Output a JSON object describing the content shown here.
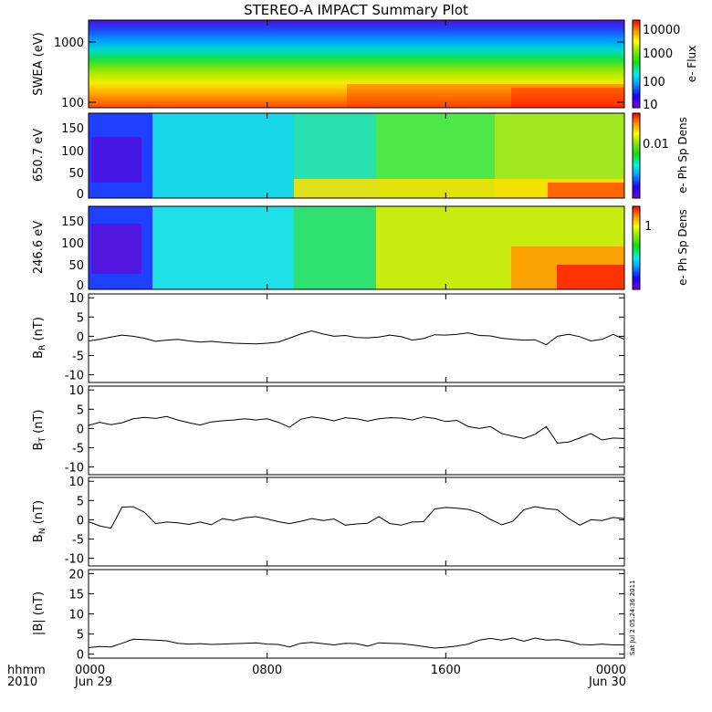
{
  "title": "STEREO-A IMPACT Summary Plot",
  "timestamp_label": "Sat Jul  2 05:24:36 2011",
  "chart_data": [
    {
      "type": "heatmap",
      "id": "swea",
      "ylabel": "SWEA (eV)",
      "y_scale": "log",
      "ylim": [
        100,
        2000
      ],
      "y_ticks": [
        "100",
        "1000"
      ],
      "y_tick_values": [
        100,
        1000
      ],
      "colorbar": {
        "label": "e- Flux",
        "scale": "log",
        "ticks": [
          "10",
          "100",
          "1000",
          "10000"
        ],
        "tick_values": [
          10,
          100,
          1000,
          10000
        ],
        "range": [
          6,
          15000
        ]
      }
    },
    {
      "type": "heatmap",
      "id": "pad650",
      "ylabel": "650.7 eV",
      "ylim": [
        0,
        180
      ],
      "y_ticks": [
        "0",
        "50",
        "100",
        "150"
      ],
      "y_tick_values": [
        0,
        50,
        100,
        150
      ],
      "colorbar": {
        "label": "e- Ph Sp Dens",
        "scale": "log",
        "ticks": [
          "0.01"
        ],
        "tick_values": [
          0.01
        ],
        "range": [
          0.0005,
          0.08
        ]
      }
    },
    {
      "type": "heatmap",
      "id": "pad246",
      "ylabel": "246.6 eV",
      "ylim": [
        0,
        180
      ],
      "y_ticks": [
        "0",
        "50",
        "100",
        "150"
      ],
      "y_tick_values": [
        0,
        50,
        100,
        150
      ],
      "colorbar": {
        "label": "e- Ph Sp Dens",
        "scale": "log",
        "ticks": [
          "1"
        ],
        "tick_values": [
          1
        ],
        "range": [
          0.05,
          4
        ]
      }
    },
    {
      "type": "line",
      "id": "br",
      "ylabel": "BR (nT)",
      "ylim": [
        -12,
        11
      ],
      "y_ticks": [
        "-10",
        "-5",
        "0",
        "5",
        "10"
      ],
      "y_tick_values": [
        -10,
        -5,
        0,
        5,
        10
      ],
      "x": [
        0,
        0.5,
        1,
        1.5,
        2,
        2.5,
        3,
        3.5,
        4,
        4.5,
        5,
        5.5,
        6,
        6.5,
        7,
        7.5,
        8,
        8.5,
        9,
        9.5,
        10,
        10.5,
        11,
        11.5,
        12,
        12.5,
        13,
        13.5,
        14,
        14.5,
        15,
        15.5,
        16,
        16.5,
        17,
        17.5,
        18,
        18.5,
        19,
        19.5,
        20,
        20.5,
        21,
        21.5,
        22,
        22.5,
        23,
        23.5,
        24
      ],
      "y": [
        -1.2,
        -0.8,
        -0.2,
        0.3,
        0,
        -0.5,
        -1.3,
        -1,
        -0.8,
        -1.2,
        -1.5,
        -1.3,
        -1.6,
        -1.8,
        -1.9,
        -2,
        -1.8,
        -1.5,
        -0.5,
        0.6,
        1.4,
        0.6,
        0,
        0.2,
        -0.3,
        -0.4,
        -0.2,
        0.3,
        -0.1,
        -1,
        -0.6,
        0.4,
        0.3,
        0.5,
        0.9,
        0.2,
        0.1,
        -0.5,
        -0.8,
        -1,
        -0.9,
        -2.2,
        0,
        0.5,
        -0.1,
        -1.2,
        -0.8,
        0.5,
        -0.8
      ]
    },
    {
      "type": "line",
      "id": "bt",
      "ylabel": "BT (nT)",
      "ylim": [
        -12,
        11
      ],
      "y_ticks": [
        "-10",
        "-5",
        "0",
        "5",
        "10"
      ],
      "y_tick_values": [
        -10,
        -5,
        0,
        5,
        10
      ],
      "x": [
        0,
        0.5,
        1,
        1.5,
        2,
        2.5,
        3,
        3.5,
        4,
        4.5,
        5,
        5.5,
        6,
        6.5,
        7,
        7.5,
        8,
        8.5,
        9,
        9.5,
        10,
        10.5,
        11,
        11.5,
        12,
        12.5,
        13,
        13.5,
        14,
        14.5,
        15,
        15.5,
        16,
        16.5,
        17,
        17.5,
        18,
        18.5,
        19,
        19.5,
        20,
        20.5,
        21,
        21.5,
        22,
        22.5,
        23,
        23.5,
        24
      ],
      "y": [
        0.8,
        1.6,
        1,
        1.5,
        2.5,
        2.9,
        2.6,
        3.1,
        2.2,
        1.5,
        0.9,
        1.7,
        2,
        2.2,
        2.5,
        2.2,
        2.5,
        1.6,
        0.3,
        2.4,
        3,
        2.6,
        2,
        2.8,
        2.5,
        1.9,
        2.5,
        2.8,
        2.7,
        2.2,
        3,
        2.6,
        1.8,
        2.1,
        0.5,
        0,
        0.5,
        -1.3,
        -2,
        -2.6,
        -1.5,
        0.5,
        -3.8,
        -3.5,
        -2.5,
        -1.3,
        -3,
        -2.5,
        -2.6
      ]
    },
    {
      "type": "line",
      "id": "bn",
      "ylabel": "BN (nT)",
      "ylim": [
        -12,
        11
      ],
      "y_ticks": [
        "-10",
        "-5",
        "0",
        "5",
        "10"
      ],
      "y_tick_values": [
        -10,
        -5,
        0,
        5,
        10
      ],
      "x": [
        0,
        0.5,
        1,
        1.5,
        2,
        2.5,
        3,
        3.5,
        4,
        4.5,
        5,
        5.5,
        6,
        6.5,
        7,
        7.5,
        8,
        8.5,
        9,
        9.5,
        10,
        10.5,
        11,
        11.5,
        12,
        12.5,
        13,
        13.5,
        14,
        14.5,
        15,
        15.5,
        16,
        16.5,
        17,
        17.5,
        18,
        18.5,
        19,
        19.5,
        20,
        20.5,
        21,
        21.5,
        22,
        22.5,
        23,
        23.5,
        24
      ],
      "y": [
        -0.5,
        -1.6,
        -2.2,
        3.3,
        3.4,
        2,
        -1,
        -0.6,
        -0.8,
        -1.2,
        -0.6,
        -1.3,
        0.3,
        -0.2,
        0.5,
        0.8,
        0.2,
        -0.5,
        -1,
        -0.4,
        0.3,
        -0.2,
        0.2,
        -1.4,
        -1.1,
        -0.9,
        0.8,
        -1,
        -1.4,
        -0.6,
        -0.5,
        2.8,
        3.2,
        3,
        2.7,
        1.8,
        0.1,
        -1.3,
        -0.4,
        2.6,
        3.4,
        2.9,
        2.6,
        0.3,
        -1.4,
        0,
        -0.2,
        0.6,
        0.3
      ]
    },
    {
      "type": "line",
      "id": "bmag",
      "ylabel": "|B| (nT)",
      "ylim": [
        -1,
        21
      ],
      "y_ticks": [
        "0",
        "5",
        "10",
        "15",
        "20"
      ],
      "y_tick_values": [
        0,
        5,
        10,
        15,
        20
      ],
      "x": [
        0,
        0.5,
        1,
        1.5,
        2,
        2.5,
        3,
        3.5,
        4,
        4.5,
        5,
        5.5,
        6,
        6.5,
        7,
        7.5,
        8,
        8.5,
        9,
        9.5,
        10,
        10.5,
        11,
        11.5,
        12,
        12.5,
        13,
        13.5,
        14,
        14.5,
        15,
        15.5,
        16,
        16.5,
        17,
        17.5,
        18,
        18.5,
        19,
        19.5,
        20,
        20.5,
        21,
        21.5,
        22,
        22.5,
        23,
        23.5,
        24
      ],
      "y": [
        1.6,
        1.9,
        1.8,
        2.7,
        3.7,
        3.6,
        3.5,
        3.3,
        2.7,
        2.5,
        2.6,
        2.4,
        2.5,
        2.6,
        2.7,
        2.8,
        2.5,
        2.4,
        1.8,
        2.7,
        2.9,
        2.6,
        2.3,
        2.7,
        2.6,
        2,
        2.8,
        2.7,
        2.6,
        2.3,
        1.9,
        1.5,
        1.7,
        2,
        2.5,
        3.5,
        3.9,
        3.5,
        4,
        3.2,
        4,
        3.5,
        3.6,
        3.2,
        2.4,
        2.3,
        2.5,
        2.3,
        2.3
      ]
    }
  ],
  "x_axis": {
    "row_label_1": "hhmm",
    "row_label_2": "2010",
    "ticks": [
      {
        "hour": 0,
        "time": "0000",
        "date": "Jun 29"
      },
      {
        "hour": 8,
        "time": "0800",
        "date": ""
      },
      {
        "hour": 16,
        "time": "1600",
        "date": ""
      },
      {
        "hour": 24,
        "time": "0000",
        "date": "Jun 30"
      }
    ],
    "range_hours": [
      0,
      24
    ]
  },
  "colors": {
    "axis": "#000000",
    "line": "#000000",
    "background": "#ffffff"
  }
}
